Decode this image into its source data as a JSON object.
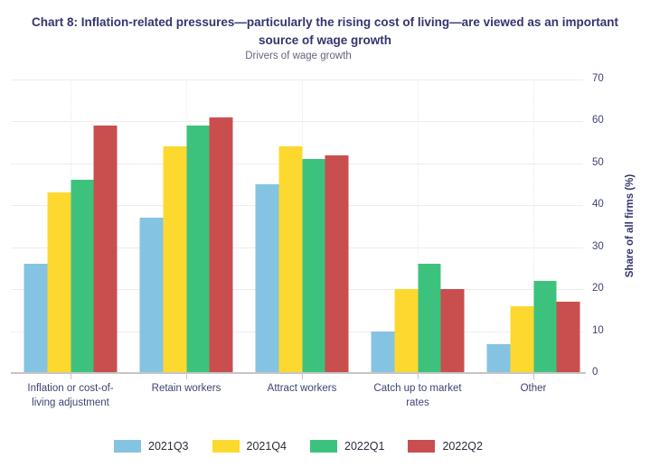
{
  "chart_data": {
    "type": "bar",
    "title": "Chart 8: Inflation-related pressures—particularly the rising cost of living—are viewed as an important source of wage growth",
    "subtitle": "Drivers of wage growth",
    "categories": [
      "Inflation or cost-of-living adjustment",
      "Retain workers",
      "Attract workers",
      "Catch up to market rates",
      "Other"
    ],
    "series": [
      {
        "name": "2021Q3",
        "color": "#85C3E2",
        "values": [
          26,
          37,
          45,
          10,
          7
        ]
      },
      {
        "name": "2021Q4",
        "color": "#FDD930",
        "values": [
          43,
          54,
          54,
          20,
          16
        ]
      },
      {
        "name": "2022Q1",
        "color": "#3DC27D",
        "values": [
          46,
          59,
          51,
          26,
          22
        ]
      },
      {
        "name": "2022Q2",
        "color": "#C94E4E",
        "values": [
          59,
          61,
          52,
          20,
          17
        ]
      }
    ],
    "xlabel": "",
    "ylabel": "Share of all firms (%)",
    "ylim": [
      0,
      70
    ],
    "yticks": [
      0,
      10,
      20,
      30,
      40,
      50,
      60,
      70
    ],
    "grid": true,
    "legend_position": "bottom"
  },
  "colors": {
    "title_text": "#33356E",
    "subtitle_text": "#63657E",
    "axis_text": "#3F4273",
    "gridline": "#EDEDED",
    "axis_line": "#C6C6C6",
    "background": "#FFFFFF"
  }
}
